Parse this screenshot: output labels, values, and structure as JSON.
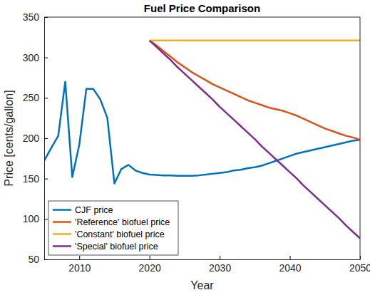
{
  "chart_data": {
    "type": "line",
    "title": "Fuel Price Comparison",
    "x_label": "Year",
    "y_label": "Price [cents/gallon]",
    "x": [
      2005,
      2006,
      2007,
      2008,
      2009,
      2010,
      2011,
      2012,
      2013,
      2014,
      2015,
      2016,
      2017,
      2018,
      2019,
      2020,
      2021,
      2022,
      2023,
      2024,
      2025,
      2026,
      2027,
      2028,
      2029,
      2030,
      2031,
      2032,
      2033,
      2034,
      2035,
      2036,
      2037,
      2038,
      2039,
      2040,
      2041,
      2042,
      2043,
      2044,
      2045,
      2046,
      2047,
      2048,
      2049,
      2050
    ],
    "series": [
      {
        "name": "CJF price",
        "color": "#0072BD",
        "values": [
          172,
          188,
          203,
          270,
          152,
          192,
          261,
          261,
          248,
          225,
          144,
          162,
          167,
          160,
          157,
          155,
          154.5,
          154,
          154,
          153.5,
          153.5,
          153.5,
          154,
          155,
          156,
          157,
          158,
          160,
          161,
          163,
          164,
          166,
          169,
          172,
          175,
          178,
          181,
          183,
          185,
          187,
          189,
          191,
          193,
          195,
          197,
          198
        ]
      },
      {
        "name": "'Reference' biofuel price",
        "color": "#D95319",
        "values": [
          null,
          null,
          null,
          null,
          null,
          null,
          null,
          null,
          null,
          null,
          null,
          null,
          null,
          null,
          null,
          321,
          315,
          308,
          301,
          294,
          288,
          282,
          277,
          272,
          267,
          263,
          259,
          255,
          251,
          247,
          244,
          241,
          238,
          236,
          234,
          231,
          228,
          224,
          220,
          216,
          212,
          209,
          206,
          203,
          201,
          198
        ]
      },
      {
        "name": "'Constant' biofuel price",
        "color": "#EDB120",
        "values": [
          null,
          null,
          null,
          null,
          null,
          null,
          null,
          null,
          null,
          null,
          null,
          null,
          null,
          null,
          null,
          321,
          321,
          321,
          321,
          321,
          321,
          321,
          321,
          321,
          321,
          321,
          321,
          321,
          321,
          321,
          321,
          321,
          321,
          321,
          321,
          321,
          321,
          321,
          321,
          321,
          321,
          321,
          321,
          321,
          321,
          321
        ]
      },
      {
        "name": "'Special' biofuel price",
        "color": "#7E2F8E",
        "values": [
          null,
          null,
          null,
          null,
          null,
          null,
          null,
          null,
          null,
          null,
          null,
          null,
          null,
          null,
          null,
          321,
          313,
          305,
          297,
          288,
          280,
          272,
          264,
          256,
          248,
          239,
          231,
          223,
          215,
          207,
          199,
          190,
          182,
          174,
          166,
          158,
          150,
          141,
          133,
          125,
          117,
          109,
          101,
          92,
          84,
          76
        ]
      }
    ],
    "xlim": [
      2005,
      2050
    ],
    "xticks": [
      2010,
      2020,
      2030,
      2040,
      2050
    ],
    "ylim": [
      50,
      350
    ],
    "yticks": [
      50,
      100,
      150,
      200,
      250,
      300,
      350
    ],
    "grid": false,
    "legend": "lower left"
  }
}
